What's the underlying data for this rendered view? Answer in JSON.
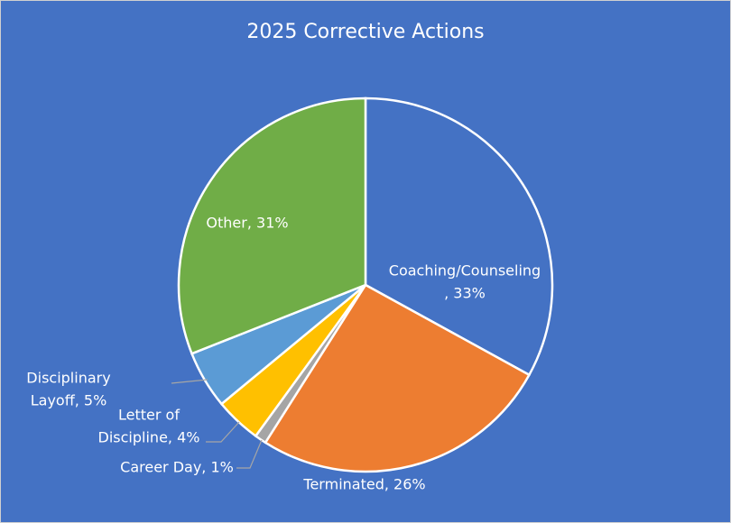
{
  "chart_data": {
    "type": "pie",
    "title": "2025 Corrective Actions",
    "values": [
      33,
      26,
      1,
      4,
      5,
      31
    ],
    "value_labels": [
      "Coaching/Counseling\n, 33%",
      "Terminated, 26%",
      "Career Day, 1%",
      "Letter of\nDiscipline, 4%",
      "Disciplinary\nLayoff, 5%",
      "Other, 31%"
    ],
    "colors": [
      "#4472c4",
      "#ed7d31",
      "#a5a5a5",
      "#ffc000",
      "#5b9bd5",
      "#70ad47"
    ]
  }
}
